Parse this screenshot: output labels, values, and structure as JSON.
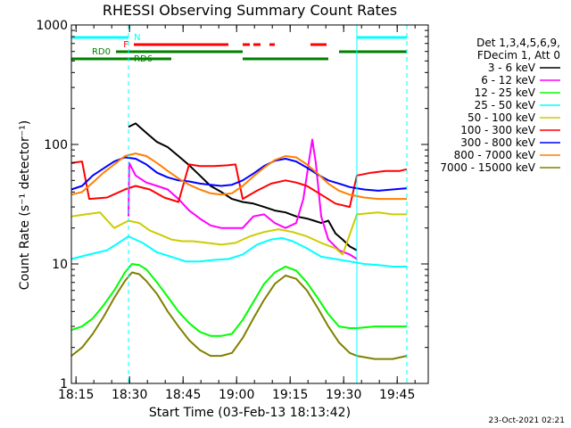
{
  "chart_data": {
    "type": "line",
    "title": "RHESSI Observing Summary Count Rates",
    "xlabel": "Start Time (03-Feb-13 18:13:42)",
    "ylabel": "Count Rate (s⁻¹ detector⁻¹)",
    "yscale": "log",
    "ylim": [
      1,
      1000
    ],
    "xlim_minutes": [
      0,
      100
    ],
    "x_ticks": [
      {
        "minute": 1.3,
        "label": "18:15"
      },
      {
        "minute": 16.3,
        "label": "18:30"
      },
      {
        "minute": 31.3,
        "label": "18:45"
      },
      {
        "minute": 46.3,
        "label": "19:00"
      },
      {
        "minute": 61.3,
        "label": "19:15"
      },
      {
        "minute": 76.3,
        "label": "19:30"
      },
      {
        "minute": 91.3,
        "label": "19:45"
      }
    ],
    "y_ticks": [
      {
        "value": 1,
        "label": "1"
      },
      {
        "value": 10,
        "label": "10"
      },
      {
        "value": 100,
        "label": "100"
      },
      {
        "value": 1000,
        "label": "1000"
      }
    ],
    "legend_header": [
      "Det 1,3,4,5,6,9,",
      "FDecim 1, Att 0"
    ],
    "footer_timestamp": "23-Oct-2021 02:21",
    "event_bars": [
      {
        "label": "N",
        "color": "#00ffff",
        "level": 1,
        "segments": [
          [
            0,
            16
          ],
          [
            80,
            94
          ]
        ]
      },
      {
        "label": "F",
        "color": "#ff0000",
        "level": 2,
        "segments": [
          [
            17.5,
            44
          ],
          [
            48,
            50
          ],
          [
            51,
            53
          ],
          [
            55.5,
            57
          ],
          [
            67,
            71.5
          ]
        ]
      },
      {
        "label": "RD0",
        "color": "#008000",
        "level": 3,
        "segments": [
          [
            12.5,
            48
          ],
          [
            75,
            94
          ]
        ]
      },
      {
        "label": "RD6",
        "color": "#008000",
        "level": 4,
        "segments": [
          [
            0,
            28
          ],
          [
            48,
            72
          ]
        ]
      }
    ],
    "vlines": [
      {
        "minute": 0,
        "style": "solid"
      },
      {
        "minute": 16,
        "style": "dashed"
      },
      {
        "minute": 80,
        "style": "solid"
      },
      {
        "minute": 94,
        "style": "dashed"
      }
    ],
    "series": [
      {
        "name": "3 - 6 keV",
        "color": "#000000",
        "points": [
          [
            16,
            140
          ],
          [
            18,
            150
          ],
          [
            21,
            125
          ],
          [
            24,
            105
          ],
          [
            27,
            95
          ],
          [
            30,
            80
          ],
          [
            33,
            67
          ],
          [
            36,
            55
          ],
          [
            39,
            45
          ],
          [
            42,
            40
          ],
          [
            45,
            35
          ],
          [
            48,
            33
          ],
          [
            51,
            32
          ],
          [
            54,
            30
          ],
          [
            57,
            28
          ],
          [
            60,
            27
          ],
          [
            63,
            25
          ],
          [
            66,
            24
          ],
          [
            68,
            23
          ],
          [
            70,
            22
          ],
          [
            72,
            23
          ],
          [
            74,
            18
          ],
          [
            76,
            16
          ],
          [
            78,
            14
          ],
          [
            80,
            13
          ]
        ]
      },
      {
        "name": "6 - 12 keV",
        "color": "#ff00ff",
        "points": [
          [
            16,
            25
          ],
          [
            16.2,
            70
          ],
          [
            18,
            55
          ],
          [
            21,
            48
          ],
          [
            24,
            45
          ],
          [
            27,
            42
          ],
          [
            30,
            35
          ],
          [
            33,
            28
          ],
          [
            36,
            24
          ],
          [
            39,
            21
          ],
          [
            42,
            20
          ],
          [
            45,
            20
          ],
          [
            48,
            20
          ],
          [
            51,
            25
          ],
          [
            54,
            26
          ],
          [
            57,
            22
          ],
          [
            60,
            20
          ],
          [
            63,
            22
          ],
          [
            65,
            35
          ],
          [
            66.5,
            70
          ],
          [
            67.5,
            110
          ],
          [
            68.5,
            70
          ],
          [
            70,
            25
          ],
          [
            72,
            16
          ],
          [
            75,
            13
          ],
          [
            78,
            12
          ],
          [
            80,
            11
          ]
        ]
      },
      {
        "name": "12 - 25 keV",
        "color": "#00ff00",
        "points": [
          [
            0,
            2.8
          ],
          [
            3,
            3
          ],
          [
            6,
            3.5
          ],
          [
            9,
            4.5
          ],
          [
            12,
            6
          ],
          [
            15,
            8.5
          ],
          [
            17,
            10
          ],
          [
            19,
            9.8
          ],
          [
            21,
            9
          ],
          [
            24,
            7
          ],
          [
            27,
            5.3
          ],
          [
            30,
            4
          ],
          [
            33,
            3.2
          ],
          [
            36,
            2.7
          ],
          [
            39,
            2.5
          ],
          [
            42,
            2.5
          ],
          [
            45,
            2.6
          ],
          [
            48,
            3.4
          ],
          [
            51,
            4.8
          ],
          [
            54,
            6.8
          ],
          [
            57,
            8.5
          ],
          [
            60,
            9.5
          ],
          [
            63,
            8.8
          ],
          [
            66,
            7
          ],
          [
            69,
            5.2
          ],
          [
            72,
            3.8
          ],
          [
            75,
            3
          ],
          [
            78,
            2.9
          ],
          [
            80,
            2.9
          ],
          [
            85,
            3
          ],
          [
            90,
            3
          ],
          [
            94,
            3
          ]
        ]
      },
      {
        "name": "25 - 50 keV",
        "color": "#00ffff",
        "points": [
          [
            0,
            11
          ],
          [
            5,
            12
          ],
          [
            10,
            13
          ],
          [
            16,
            17
          ],
          [
            20,
            15
          ],
          [
            24,
            12.5
          ],
          [
            28,
            11.5
          ],
          [
            32,
            10.5
          ],
          [
            36,
            10.5
          ],
          [
            40,
            10.8
          ],
          [
            44,
            11
          ],
          [
            48,
            12
          ],
          [
            52,
            14.5
          ],
          [
            56,
            16
          ],
          [
            59,
            16.5
          ],
          [
            62,
            15.5
          ],
          [
            66,
            13.5
          ],
          [
            70,
            11.5
          ],
          [
            74,
            11
          ],
          [
            78,
            10.5
          ],
          [
            82,
            10
          ],
          [
            86,
            9.8
          ],
          [
            90,
            9.5
          ],
          [
            94,
            9.5
          ]
        ]
      },
      {
        "name": "50 - 100 keV",
        "color": "#cccc00",
        "points": [
          [
            0,
            25
          ],
          [
            4,
            26
          ],
          [
            8,
            27
          ],
          [
            12,
            20
          ],
          [
            16,
            23
          ],
          [
            19,
            22
          ],
          [
            22,
            19
          ],
          [
            25,
            17.5
          ],
          [
            28,
            16
          ],
          [
            31,
            15.5
          ],
          [
            34,
            15.5
          ],
          [
            38,
            15
          ],
          [
            42,
            14.5
          ],
          [
            46,
            15
          ],
          [
            50,
            17
          ],
          [
            54,
            18.5
          ],
          [
            58,
            19.5
          ],
          [
            62,
            18.5
          ],
          [
            66,
            17
          ],
          [
            70,
            15
          ],
          [
            74,
            13.5
          ],
          [
            76,
            12
          ],
          [
            80,
            26
          ],
          [
            86,
            27
          ],
          [
            90,
            26
          ],
          [
            94,
            26
          ]
        ]
      },
      {
        "name": "100 - 300 keV",
        "color": "#ff0000",
        "points": [
          [
            0,
            70
          ],
          [
            3,
            72
          ],
          [
            5,
            35
          ],
          [
            10,
            36
          ],
          [
            15,
            42
          ],
          [
            18,
            45
          ],
          [
            22,
            42
          ],
          [
            26,
            36
          ],
          [
            30,
            33
          ],
          [
            33,
            68
          ],
          [
            36,
            66
          ],
          [
            40,
            66
          ],
          [
            44,
            67
          ],
          [
            46,
            68
          ],
          [
            48,
            35
          ],
          [
            52,
            41
          ],
          [
            56,
            47
          ],
          [
            60,
            50
          ],
          [
            63,
            48
          ],
          [
            66,
            45
          ],
          [
            70,
            38
          ],
          [
            74,
            32
          ],
          [
            78,
            30
          ],
          [
            80,
            55
          ],
          [
            84,
            58
          ],
          [
            88,
            60
          ],
          [
            92,
            60
          ],
          [
            94,
            62
          ]
        ]
      },
      {
        "name": "300 - 800 keV",
        "color": "#0000ff",
        "points": [
          [
            0,
            42
          ],
          [
            3,
            45
          ],
          [
            6,
            55
          ],
          [
            9,
            63
          ],
          [
            12,
            72
          ],
          [
            15,
            78
          ],
          [
            18,
            76
          ],
          [
            21,
            68
          ],
          [
            24,
            58
          ],
          [
            27,
            53
          ],
          [
            30,
            50
          ],
          [
            33,
            49
          ],
          [
            36,
            47
          ],
          [
            39,
            46
          ],
          [
            42,
            45
          ],
          [
            45,
            46
          ],
          [
            48,
            50
          ],
          [
            51,
            57
          ],
          [
            54,
            66
          ],
          [
            57,
            73
          ],
          [
            60,
            76
          ],
          [
            63,
            72
          ],
          [
            66,
            64
          ],
          [
            69,
            56
          ],
          [
            72,
            50
          ],
          [
            75,
            47
          ],
          [
            78,
            44
          ],
          [
            82,
            42
          ],
          [
            86,
            41
          ],
          [
            90,
            42
          ],
          [
            94,
            43
          ]
        ]
      },
      {
        "name": "800 - 7000 keV",
        "color": "#ff8000",
        "points": [
          [
            0,
            38
          ],
          [
            3,
            40
          ],
          [
            6,
            48
          ],
          [
            9,
            58
          ],
          [
            12,
            68
          ],
          [
            15,
            80
          ],
          [
            18,
            84
          ],
          [
            21,
            80
          ],
          [
            24,
            70
          ],
          [
            27,
            60
          ],
          [
            30,
            52
          ],
          [
            33,
            46
          ],
          [
            36,
            42
          ],
          [
            39,
            39
          ],
          [
            42,
            38
          ],
          [
            45,
            39
          ],
          [
            48,
            45
          ],
          [
            51,
            54
          ],
          [
            54,
            64
          ],
          [
            57,
            74
          ],
          [
            60,
            80
          ],
          [
            63,
            78
          ],
          [
            66,
            68
          ],
          [
            69,
            57
          ],
          [
            72,
            47
          ],
          [
            75,
            41
          ],
          [
            78,
            38
          ],
          [
            82,
            36
          ],
          [
            86,
            35
          ],
          [
            90,
            35
          ],
          [
            94,
            35
          ]
        ]
      },
      {
        "name": "7000 - 15000 keV",
        "color": "#808000",
        "points": [
          [
            0,
            1.7
          ],
          [
            3,
            2
          ],
          [
            6,
            2.6
          ],
          [
            9,
            3.6
          ],
          [
            12,
            5.2
          ],
          [
            15,
            7.2
          ],
          [
            17,
            8.5
          ],
          [
            19,
            8.2
          ],
          [
            21,
            7.2
          ],
          [
            24,
            5.6
          ],
          [
            27,
            4
          ],
          [
            30,
            3
          ],
          [
            33,
            2.3
          ],
          [
            36,
            1.9
          ],
          [
            39,
            1.7
          ],
          [
            42,
            1.7
          ],
          [
            45,
            1.8
          ],
          [
            48,
            2.4
          ],
          [
            51,
            3.5
          ],
          [
            54,
            5
          ],
          [
            57,
            6.8
          ],
          [
            60,
            8
          ],
          [
            63,
            7.5
          ],
          [
            66,
            6
          ],
          [
            69,
            4.3
          ],
          [
            72,
            3
          ],
          [
            75,
            2.2
          ],
          [
            78,
            1.8
          ],
          [
            80,
            1.7
          ],
          [
            85,
            1.6
          ],
          [
            90,
            1.6
          ],
          [
            94,
            1.7
          ]
        ]
      }
    ]
  }
}
